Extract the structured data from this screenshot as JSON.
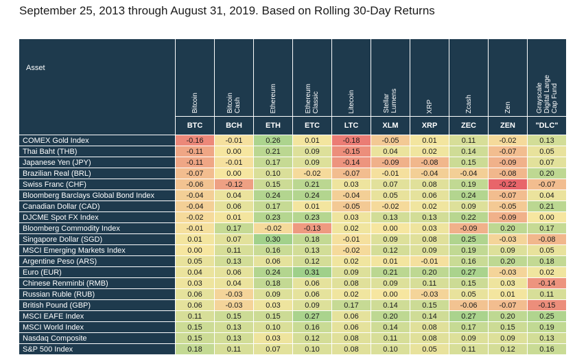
{
  "subtitle": "September 25, 2013 through August 31, 2019. Based on Rolling 30-Day Returns",
  "chart_data": {
    "type": "heatmap",
    "title": "September 25, 2013 through August 31, 2019. Based on Rolling 30-Day Returns",
    "row_header": "Asset",
    "columns": [
      {
        "name": "Bitcoin",
        "ticker": "BTC"
      },
      {
        "name": "Bitcoin\nCash",
        "ticker": "BCH"
      },
      {
        "name": "Ethereum",
        "ticker": "ETH"
      },
      {
        "name": "Ethereum\nClassic",
        "ticker": "ETC"
      },
      {
        "name": "Litecoin",
        "ticker": "LTC"
      },
      {
        "name": "Stellar\nLumens",
        "ticker": "XLM"
      },
      {
        "name": "XRP",
        "ticker": "XRP"
      },
      {
        "name": "Zcash",
        "ticker": "ZEC"
      },
      {
        "name": "Zen",
        "ticker": "ZEN"
      },
      {
        "name": "Grayscale\nDigital Large\nCap Fund",
        "ticker": "\"DLC\""
      }
    ],
    "rows": [
      "COMEX Gold Index",
      "Thai Baht (THB)",
      "Japanese Yen (JPY)",
      "Brazilian Real (BRL)",
      "Swiss Franc (CHF)",
      "Bloomberg Barclays Global Bond Index",
      "Canadian Dollar (CAD)",
      "DJCME Spot FX Index",
      "Bloomberg Commodity Index",
      "Singapore Dollar (SGD)",
      "MSCI Emerging Markets Index",
      "Argentine Peso (ARS)",
      "Euro (EUR)",
      "Chinese Renminbi (RMB)",
      "Russian Ruble (RUB)",
      "British Pound (GBP)",
      "MSCI EAFE Index",
      "MSCI World Index",
      "Nasdaq Composite",
      "S&P 500 Index"
    ],
    "values": [
      [
        "-0.16",
        "-0.01",
        "0.26",
        "0.01",
        "-0.18",
        "-0.05",
        "0.01",
        "0.11",
        "-0.02",
        "0.13"
      ],
      [
        "-0.11",
        "0.00",
        "0.21",
        "0.09",
        "-0.15",
        "0.04",
        "0.02",
        "0.14",
        "-0.07",
        "0.05"
      ],
      [
        "-0.11",
        "-0.01",
        "0.17",
        "0.09",
        "-0.14",
        "-0.09",
        "-0.08",
        "0.15",
        "-0.09",
        "0.07"
      ],
      [
        "-0.07",
        "0.00",
        "0.10",
        "-0.02",
        "-0.07",
        "-0.01",
        "-0.04",
        "-0.04",
        "-0.08",
        "0.20"
      ],
      [
        "-0.06",
        "-0.12",
        "0.15",
        "0.21",
        "0.03",
        "0.07",
        "0.08",
        "0.19",
        "-0.22",
        "-0.07"
      ],
      [
        "-0.04",
        "0.04",
        "0.24",
        "0.24",
        "-0.04",
        "0.05",
        "0.06",
        "0.24",
        "-0.07",
        "0.04"
      ],
      [
        "-0.04",
        "0.06",
        "0.17",
        "0.01",
        "-0.05",
        "-0.02",
        "0.02",
        "0.09",
        "-0.05",
        "0.21"
      ],
      [
        "-0.02",
        "0.01",
        "0.23",
        "0.23",
        "0.03",
        "0.13",
        "0.13",
        "0.22",
        "-0.09",
        "0.00"
      ],
      [
        "-0.01",
        "0.17",
        "-0.02",
        "-0.13",
        "0.02",
        "0.00",
        "0.03",
        "-0.09",
        "0.20",
        "0.17"
      ],
      [
        "0.01",
        "0.07",
        "0.30",
        "0.18",
        "-0.01",
        "0.09",
        "0.08",
        "0.25",
        "-0.03",
        "-0.08"
      ],
      [
        "0.00",
        "0.11",
        "0.16",
        "0.13",
        "-0.02",
        "0.12",
        "0.09",
        "0.19",
        "0.09",
        "0.05"
      ],
      [
        "0.05",
        "0.13",
        "0.06",
        "0.12",
        "0.02",
        "0.01",
        "-0.01",
        "0.16",
        "0.20",
        "0.18"
      ],
      [
        "0.04",
        "0.06",
        "0.24",
        "0.31",
        "0.09",
        "0.21",
        "0.20",
        "0.27",
        "-0.03",
        "0.02"
      ],
      [
        "0.03",
        "0.04",
        "0.18",
        "0.06",
        "0.08",
        "0.09",
        "0.11",
        "0.15",
        "0.03",
        "-0.14"
      ],
      [
        "0.06",
        "-0.03",
        "0.09",
        "0.06",
        "0.02",
        "0.00",
        "-0.03",
        "0.05",
        "0.01",
        "0.11"
      ],
      [
        "0.06",
        "-0.03",
        "0.03",
        "0.09",
        "0.17",
        "0.14",
        "0.15",
        "-0.06",
        "-0.07",
        "-0.15"
      ],
      [
        "0.11",
        "0.15",
        "0.15",
        "0.27",
        "0.06",
        "0.20",
        "0.14",
        "0.27",
        "0.20",
        "0.25"
      ],
      [
        "0.15",
        "0.13",
        "0.10",
        "0.16",
        "0.06",
        "0.14",
        "0.08",
        "0.17",
        "0.15",
        "0.19"
      ],
      [
        "0.15",
        "0.13",
        "0.03",
        "0.12",
        "0.08",
        "0.11",
        "0.08",
        "0.09",
        "0.09",
        "0.13"
      ],
      [
        "0.18",
        "0.11",
        "0.07",
        "0.10",
        "0.08",
        "0.10",
        "0.05",
        "0.11",
        "0.12",
        "0.16"
      ]
    ],
    "color_scale": {
      "low": -0.22,
      "high": 0.31,
      "low_color": "#e8656a",
      "mid_color": "#f6e6a0",
      "high_color": "#9fd08a"
    }
  }
}
